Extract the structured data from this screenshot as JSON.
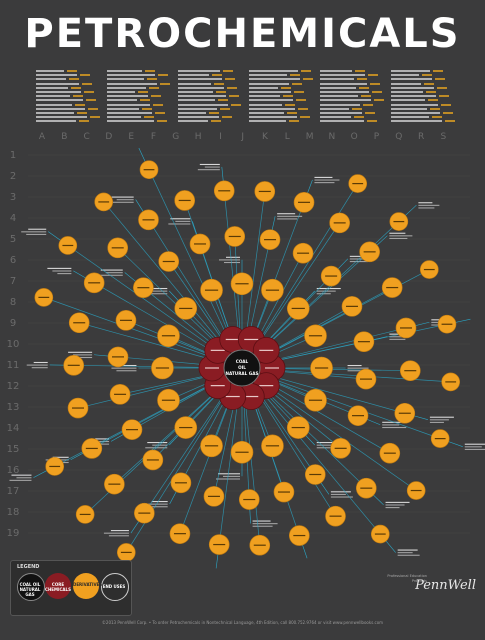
{
  "poster": {
    "title": "PETROCHEMICALS",
    "colors": {
      "background": "#3b3b3c",
      "node": "#f0a020",
      "core": "#8a1c23",
      "center": "#111111",
      "link": "#2aa8c8"
    },
    "column_letters": [
      "A",
      "B",
      "C",
      "D",
      "E",
      "F",
      "G",
      "H",
      "I",
      "J",
      "K",
      "L",
      "M",
      "N",
      "O",
      "P",
      "Q",
      "R",
      "S"
    ],
    "row_numbers": [
      "1",
      "2",
      "3",
      "4",
      "5",
      "6",
      "7",
      "8",
      "9",
      "10",
      "11",
      "12",
      "13",
      "14",
      "15",
      "16",
      "17",
      "18",
      "19"
    ],
    "center_node": {
      "line1": "COAL",
      "line2": "OIL",
      "line3": "NATURAL GAS"
    },
    "legend": {
      "title": "LEGEND",
      "items": [
        {
          "label": "COAL OIL NATURAL GAS"
        },
        {
          "label": "CORE CHEMICALS"
        },
        {
          "label": "DERIVATIVES"
        },
        {
          "label": "END USES"
        }
      ]
    },
    "brand": {
      "name": "PennWell",
      "tagline": "Professional Education Products"
    },
    "footer": "©2013 PennWell Corp. • To order Petrochemicals in Nontechnical Language, 4th Edition, call 800.752.9764 or visit www.pennwellbooks.com"
  }
}
